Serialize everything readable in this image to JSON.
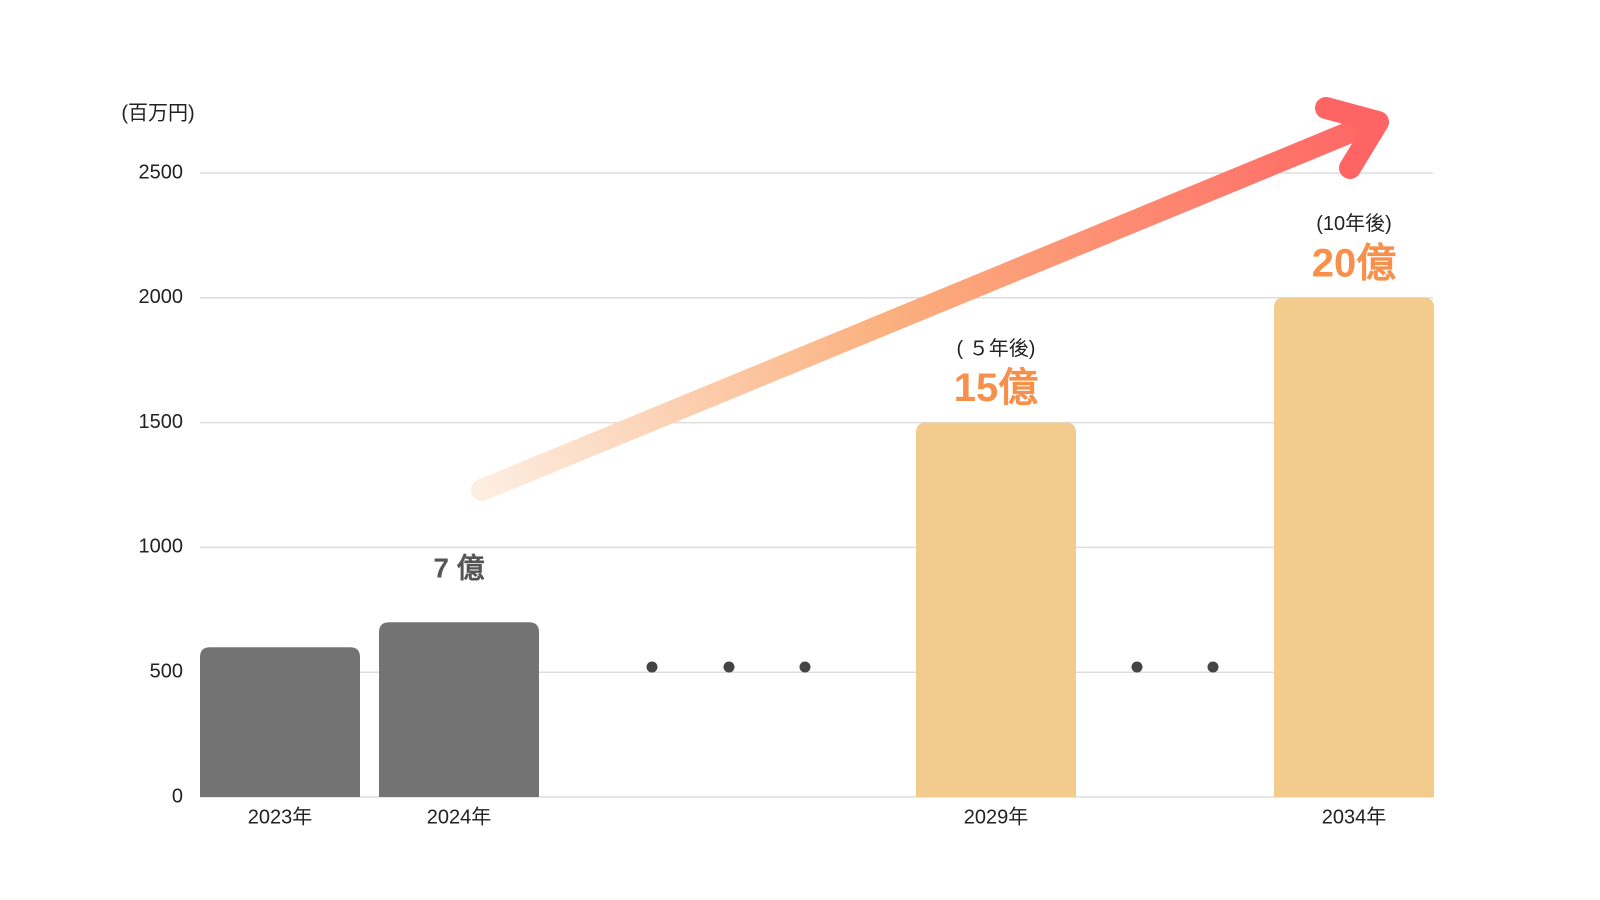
{
  "chart_data": {
    "type": "bar",
    "y_axis_label": "(百万円)",
    "categories": [
      "2023年",
      "2024年",
      null,
      null,
      "2029年",
      null,
      "2034年"
    ],
    "values": [
      600,
      700,
      null,
      null,
      1500,
      null,
      2000
    ],
    "value_labels": [
      null,
      "7 億",
      null,
      null,
      "15億",
      null,
      "20億"
    ],
    "annotations": [
      null,
      null,
      null,
      null,
      "( ５年後)",
      null,
      "(10年後)"
    ],
    "colors": [
      "#737373",
      "#737373",
      null,
      null,
      "#f3cc8d",
      null,
      "#f3cc8d"
    ],
    "label_colors": [
      null,
      "#555555",
      null,
      null,
      "#f7904a",
      null,
      "#f7904a"
    ],
    "ylim": [
      0,
      2500
    ],
    "yticks": [
      0,
      500,
      1000,
      1500,
      2000,
      2500
    ],
    "grid": true
  }
}
